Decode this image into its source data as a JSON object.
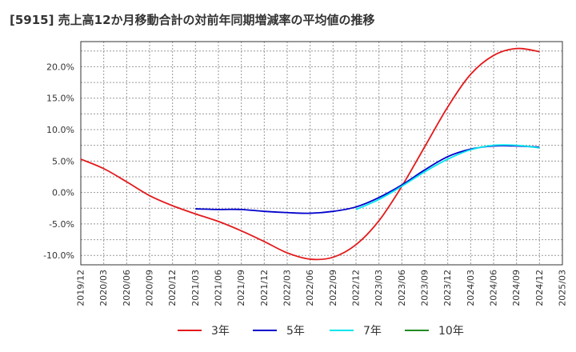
{
  "chart_data": {
    "type": "line",
    "title": "[5915]  売上高12か月移動合計の対前年同期増減率の平均値の推移",
    "x_labels": [
      "2019/12",
      "2020/03",
      "2020/06",
      "2020/09",
      "2020/12",
      "2021/03",
      "2021/06",
      "2021/09",
      "2021/12",
      "2022/03",
      "2022/06",
      "2022/09",
      "2022/12",
      "2023/03",
      "2023/06",
      "2023/09",
      "2023/12",
      "2024/03",
      "2024/06",
      "2024/09",
      "2024/12",
      "2025/03"
    ],
    "y_ticks": [
      20.0,
      15.0,
      10.0,
      5.0,
      0.0,
      -5.0,
      -10.0
    ],
    "y_tick_labels": [
      "20.0%",
      "15.0%",
      "10.0%",
      "5.0%",
      "0.0%",
      "-5.0%",
      "-10.0%"
    ],
    "ylim": [
      -11.5,
      24.0
    ],
    "grid": true,
    "legend_position": "bottom",
    "series": [
      {
        "name": "3年",
        "color": "#e31a1c",
        "values": [
          5.3,
          3.8,
          1.7,
          -0.5,
          -2.1,
          -3.4,
          -4.6,
          -6.1,
          -7.8,
          -9.6,
          -10.6,
          -10.3,
          -8.3,
          -4.5,
          1.0,
          7.3,
          13.6,
          18.8,
          21.8,
          22.9,
          22.4,
          null
        ]
      },
      {
        "name": "5年",
        "color": "#0000cd",
        "values": [
          null,
          null,
          null,
          null,
          null,
          -2.6,
          -2.7,
          -2.7,
          -3.0,
          -3.2,
          -3.3,
          -3.0,
          -2.3,
          -0.8,
          1.2,
          3.6,
          5.7,
          6.9,
          7.4,
          7.4,
          7.2,
          null
        ]
      },
      {
        "name": "7年",
        "color": "#00e5ee",
        "values": [
          null,
          null,
          null,
          null,
          null,
          null,
          null,
          null,
          null,
          null,
          null,
          null,
          -2.7,
          -1.1,
          1.0,
          3.3,
          5.3,
          6.8,
          7.5,
          7.5,
          7.1,
          null
        ]
      },
      {
        "name": "10年",
        "color": "#228b22",
        "values": []
      }
    ]
  }
}
